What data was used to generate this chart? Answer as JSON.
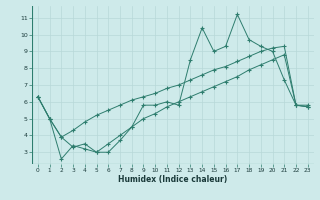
{
  "xlabel": "Humidex (Indice chaleur)",
  "background_color": "#ceeaea",
  "line_color": "#2e7d6e",
  "grid_color": "#b8d8d8",
  "x_values": [
    0,
    1,
    2,
    3,
    4,
    5,
    6,
    7,
    8,
    9,
    10,
    11,
    12,
    13,
    14,
    15,
    16,
    17,
    18,
    19,
    20,
    21,
    22,
    23
  ],
  "line1": [
    6.3,
    5.0,
    2.6,
    3.4,
    3.2,
    3.0,
    3.0,
    3.7,
    4.5,
    5.8,
    5.8,
    6.0,
    5.8,
    8.5,
    10.4,
    9.0,
    9.3,
    11.2,
    9.7,
    9.3,
    9.0,
    7.3,
    5.8,
    5.8
  ],
  "line2": [
    6.3,
    5.0,
    3.9,
    4.3,
    4.8,
    5.2,
    5.5,
    5.8,
    6.1,
    6.3,
    6.5,
    6.8,
    7.0,
    7.3,
    7.6,
    7.9,
    8.1,
    8.4,
    8.7,
    9.0,
    9.2,
    9.3,
    5.8,
    5.7
  ],
  "line3": [
    6.3,
    5.0,
    3.9,
    3.3,
    3.5,
    3.0,
    3.5,
    4.0,
    4.5,
    5.0,
    5.3,
    5.7,
    6.0,
    6.3,
    6.6,
    6.9,
    7.2,
    7.5,
    7.9,
    8.2,
    8.5,
    8.8,
    5.8,
    5.7
  ],
  "ylim": [
    2.3,
    11.7
  ],
  "xlim": [
    -0.5,
    23.5
  ],
  "yticks": [
    3,
    4,
    5,
    6,
    7,
    8,
    9,
    10,
    11
  ],
  "xticks": [
    0,
    1,
    2,
    3,
    4,
    5,
    6,
    7,
    8,
    9,
    10,
    11,
    12,
    13,
    14,
    15,
    16,
    17,
    18,
    19,
    20,
    21,
    22,
    23
  ]
}
